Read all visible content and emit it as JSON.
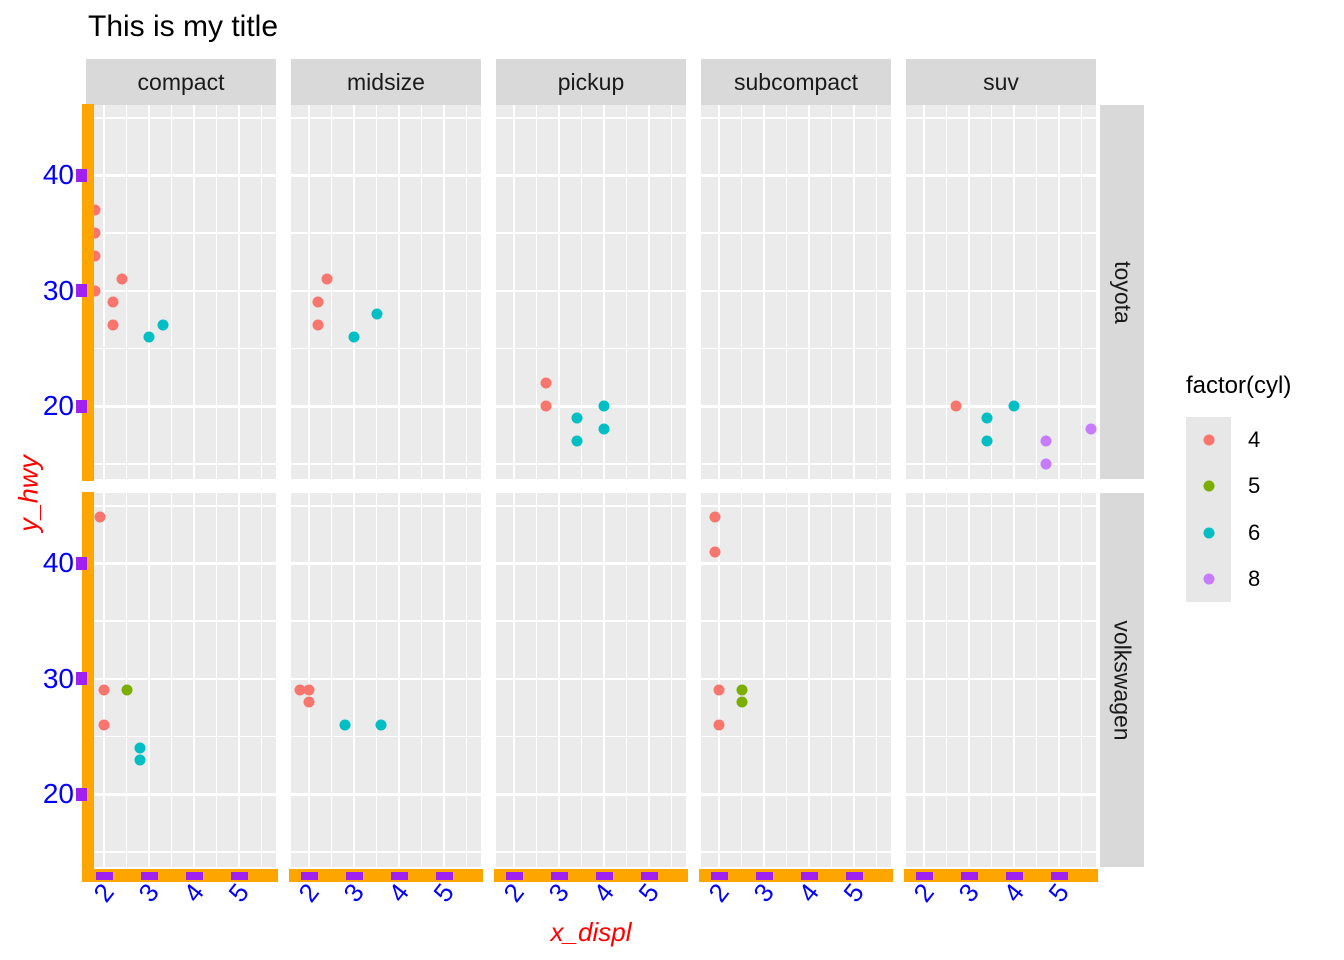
{
  "title": "This is my title",
  "axes": {
    "x_title": "x_displ",
    "y_title": "y_hwy",
    "x_tick_labels": [
      "2",
      "3",
      "4",
      "5"
    ],
    "y_tick_labels": [
      "40",
      "30",
      "20"
    ]
  },
  "facets": {
    "columns": [
      "compact",
      "midsize",
      "pickup",
      "subcompact",
      "suv"
    ],
    "rows": [
      "toyota",
      "volkswagen"
    ]
  },
  "legend": {
    "title": "factor(cyl)",
    "items": [
      {
        "label": "4",
        "color": "#F8766D"
      },
      {
        "label": "5",
        "color": "#7CAE00"
      },
      {
        "label": "6",
        "color": "#00BFC4"
      },
      {
        "label": "8",
        "color": "#C77CFF"
      }
    ]
  },
  "colors": {
    "axis_line_orange": "#FFA500",
    "tick_purple": "#A020F0",
    "axis_text_blue": "#0202F8",
    "axis_title_red": "#FF0000",
    "panel_background": "#EBEBEB",
    "strip_background": "#D9D9D9",
    "gridline_white": "#FFFFFF",
    "legend_key_background": "#E7E7E7"
  },
  "chart_data": {
    "type": "scatter",
    "title": "This is my title",
    "xlabel": "x_displ",
    "ylabel": "y_hwy",
    "facet_row_variable_values": [
      "toyota",
      "volkswagen"
    ],
    "facet_col_variable_values": [
      "compact",
      "midsize",
      "pickup",
      "subcompact",
      "suv"
    ],
    "x_breaks": [
      2,
      3,
      4,
      5
    ],
    "x_minor_breaks": [
      2.5,
      3.5,
      4.5,
      5.5
    ],
    "x_domain": [
      1.6,
      5.82
    ],
    "y_breaks": [
      40,
      30,
      20
    ],
    "y_minor_breaks": [
      45,
      35,
      25,
      15
    ],
    "y_domain": [
      13.7,
      46.1
    ],
    "legend_series": "factor(cyl)",
    "point_format": [
      "x_displ",
      "y_hwy",
      "cyl"
    ],
    "facet_points": {
      "toyota": {
        "compact": [
          [
            1.8,
            37,
            "4"
          ],
          [
            1.8,
            35,
            "4"
          ],
          [
            1.8,
            33,
            "4"
          ],
          [
            1.8,
            30,
            "4"
          ],
          [
            2.4,
            31,
            "4"
          ],
          [
            2.2,
            29,
            "4"
          ],
          [
            2.2,
            27,
            "4"
          ],
          [
            3.0,
            26,
            "6"
          ],
          [
            3.3,
            27,
            "6"
          ]
        ],
        "midsize": [
          [
            2.4,
            31,
            "4"
          ],
          [
            2.2,
            29,
            "4"
          ],
          [
            2.2,
            27,
            "4"
          ],
          [
            3.0,
            26,
            "6"
          ],
          [
            3.5,
            28,
            "6"
          ]
        ],
        "pickup": [
          [
            2.7,
            22,
            "4"
          ],
          [
            2.7,
            20,
            "4"
          ],
          [
            3.4,
            19,
            "6"
          ],
          [
            3.4,
            17,
            "6"
          ],
          [
            4.0,
            20,
            "6"
          ],
          [
            4.0,
            18,
            "6"
          ]
        ],
        "subcompact": [],
        "suv": [
          [
            2.7,
            20,
            "4"
          ],
          [
            3.4,
            19,
            "6"
          ],
          [
            3.4,
            17,
            "6"
          ],
          [
            4.0,
            20,
            "6"
          ],
          [
            4.7,
            17,
            "8"
          ],
          [
            4.7,
            15,
            "8"
          ],
          [
            5.7,
            18,
            "8"
          ]
        ]
      },
      "volkswagen": {
        "compact": [
          [
            1.9,
            44,
            "4"
          ],
          [
            2.0,
            29,
            "4"
          ],
          [
            2.0,
            26,
            "4"
          ],
          [
            2.5,
            29,
            "5"
          ],
          [
            2.8,
            24,
            "6"
          ],
          [
            2.8,
            23,
            "6"
          ]
        ],
        "midsize": [
          [
            1.8,
            29,
            "4"
          ],
          [
            2.0,
            29,
            "4"
          ],
          [
            2.0,
            28,
            "4"
          ],
          [
            2.8,
            26,
            "6"
          ],
          [
            3.6,
            26,
            "6"
          ]
        ],
        "pickup": [],
        "subcompact": [
          [
            1.9,
            44,
            "4"
          ],
          [
            1.9,
            41,
            "4"
          ],
          [
            2.0,
            29,
            "4"
          ],
          [
            2.0,
            26,
            "4"
          ],
          [
            2.5,
            29,
            "5"
          ],
          [
            2.5,
            28,
            "5"
          ]
        ],
        "suv": []
      }
    }
  }
}
